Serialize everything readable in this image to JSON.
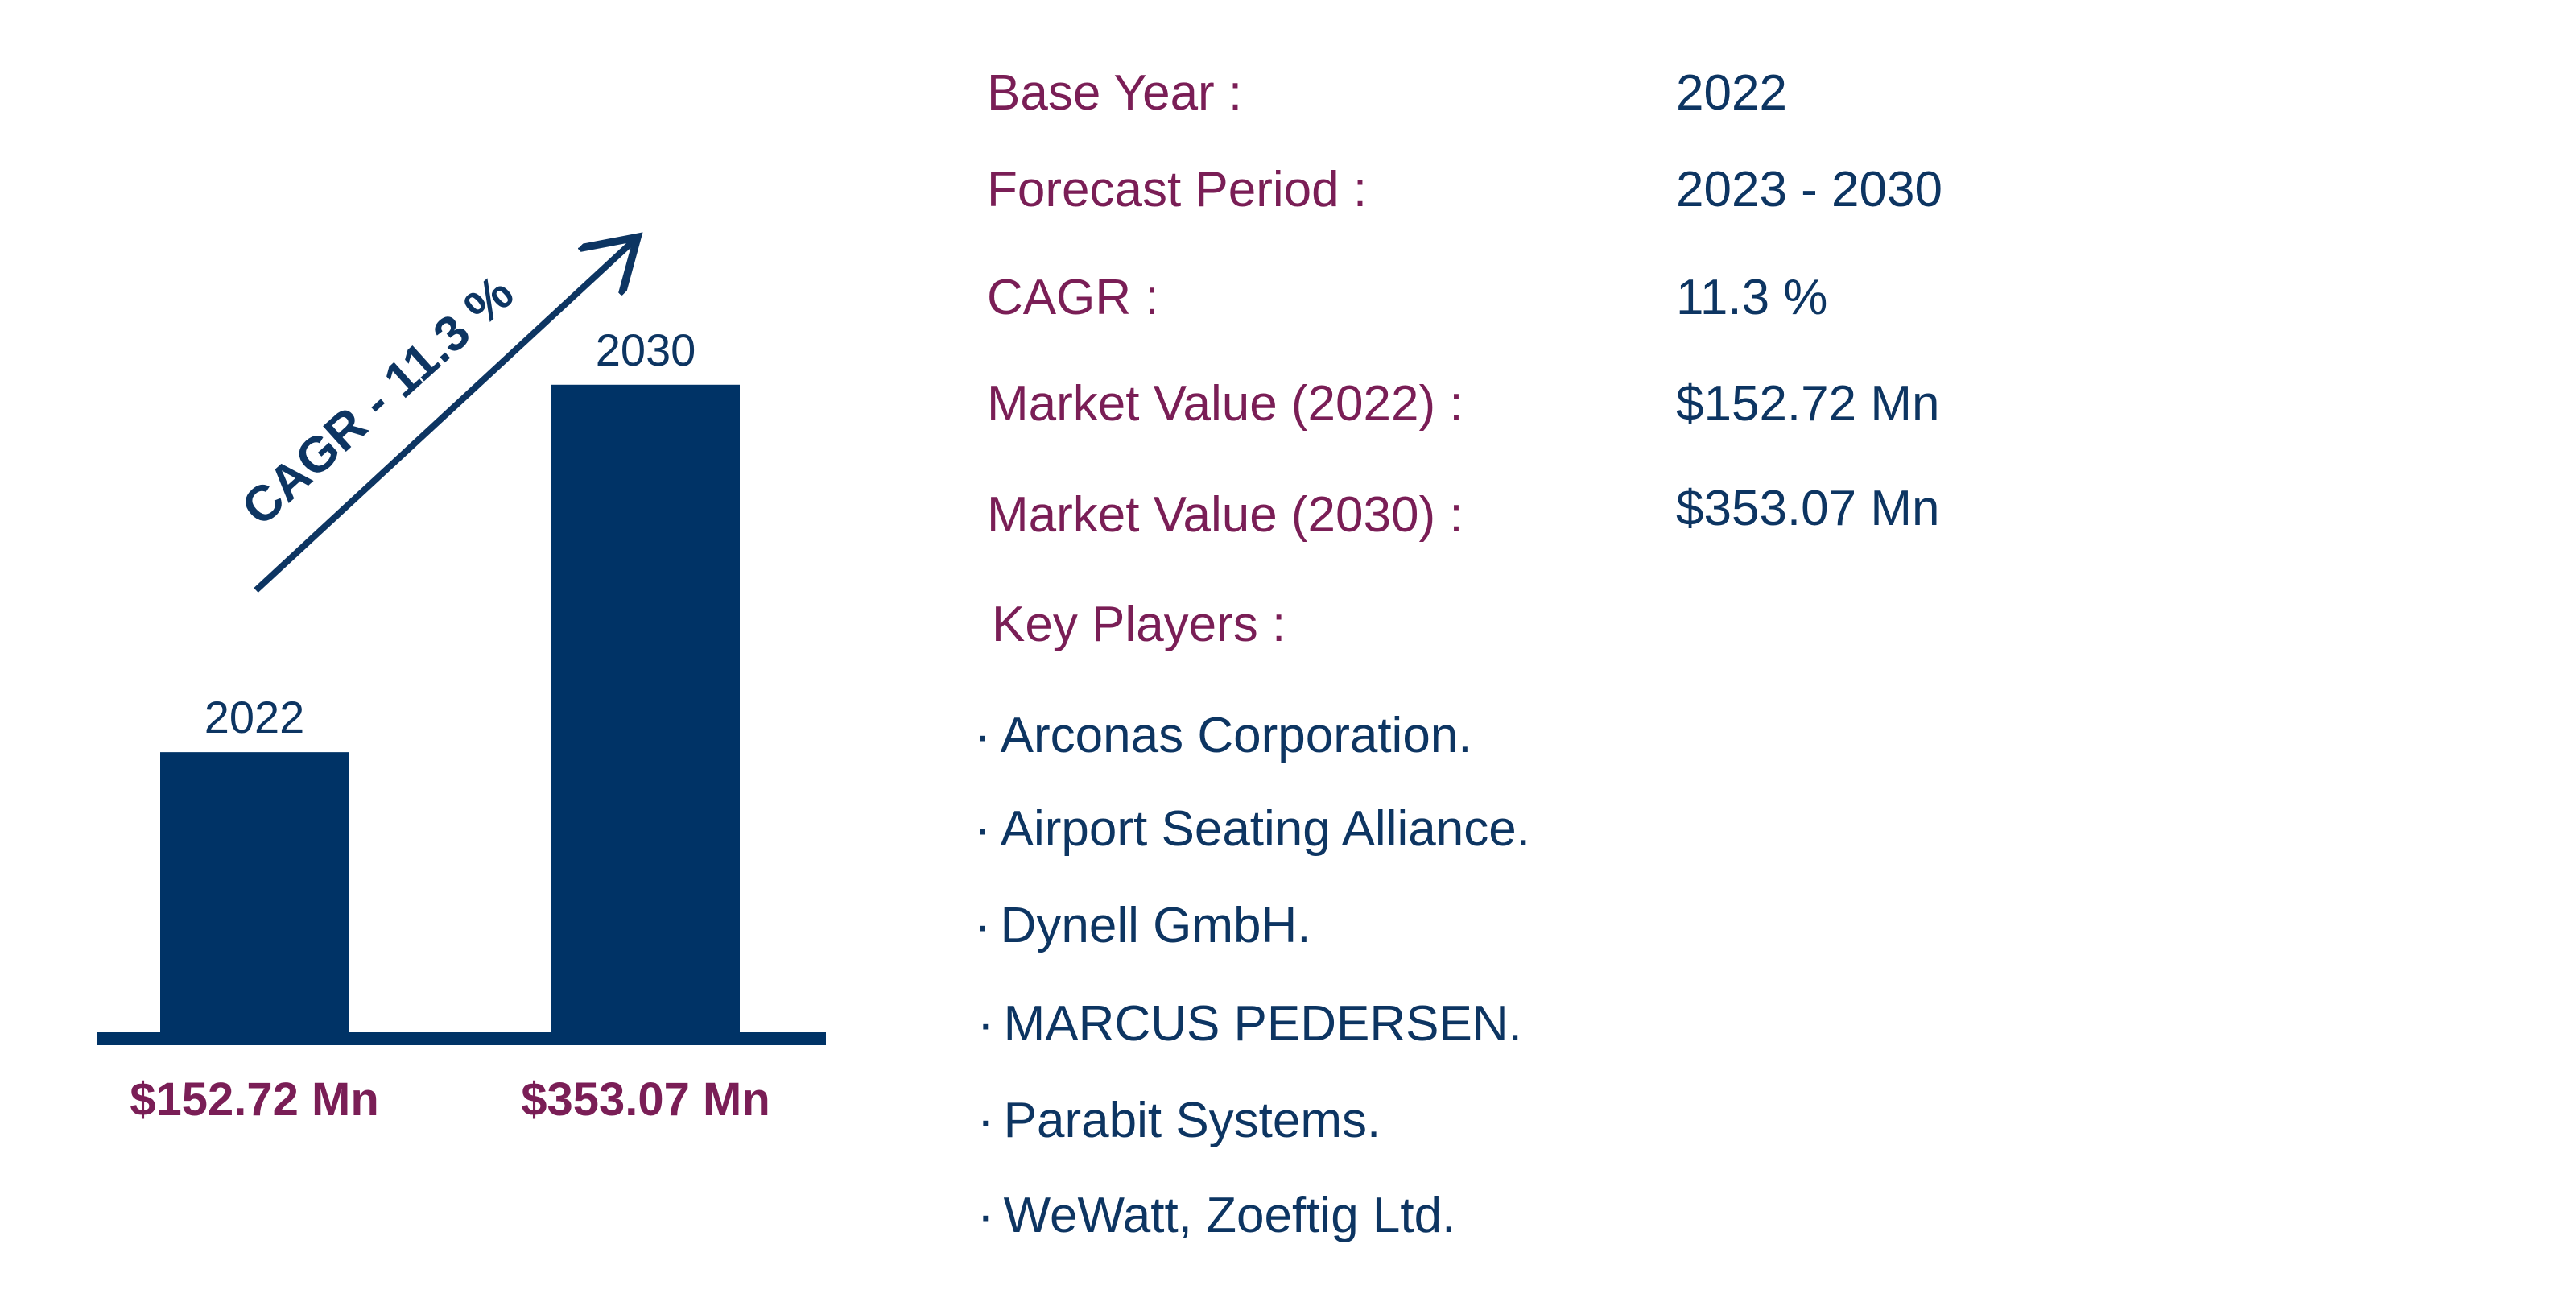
{
  "colors": {
    "bar": "#003366",
    "label_purple": "#7a1e56",
    "value_navy": "#0d3562"
  },
  "chart_data": {
    "type": "bar",
    "categories": [
      "2022",
      "2030"
    ],
    "values": [
      152.72,
      353.07
    ],
    "value_labels": [
      "$152.72 Mn",
      "$353.07 Mn"
    ],
    "annotation": "CAGR - 11.3 %",
    "ylim": [
      0,
      360
    ]
  },
  "info": {
    "rows": [
      {
        "label": "Base Year :",
        "value": "2022"
      },
      {
        "label": "Forecast Period :",
        "value": "2023 - 2030"
      },
      {
        "label": "CAGR :",
        "value": "11.3 %"
      },
      {
        "label": "Market Value (2022) :",
        "value": "$152.72 Mn"
      },
      {
        "label": "Market Value (2030) :",
        "value": "$353.07 Mn"
      }
    ],
    "key_players_label": "Key Players :",
    "bullet": "·",
    "key_players": [
      "Arconas Corporation.",
      "Airport Seating Alliance.",
      "Dynell GmbH.",
      "MARCUS PEDERSEN.",
      "Parabit Systems.",
      "WeWatt, Zoeftig Ltd."
    ]
  }
}
